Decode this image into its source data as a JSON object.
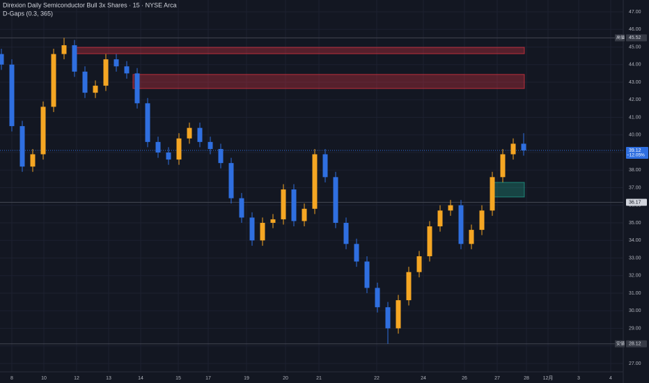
{
  "chart_data": {
    "type": "candlestick",
    "title": "Direxion Daily Semiconductor Bull 3x Shares · 15 · NYSE Arca",
    "subtitle": "D-Gaps (0.3, 365)",
    "up_color": "#f5a623",
    "down_color": "#2f6fe0",
    "x": [
      0.4,
      3.4,
      6.4,
      9.4,
      12.4,
      15.4,
      18.4,
      21.4,
      24.4,
      27.4,
      30.4,
      33.4,
      36.4,
      39.4,
      42.4,
      45.4,
      48.4,
      51.4,
      54.4,
      57.4,
      60.4,
      63.4,
      66.4,
      69.4,
      72.4,
      75.4,
      78.4,
      81.4,
      84.4,
      87.4,
      90.4,
      93.4,
      96.4,
      99.4,
      102.4,
      105.4,
      108.4,
      111.4,
      114.4,
      117.4,
      120.4,
      123.4,
      126.4,
      129.4,
      132.4,
      135.4,
      138.4,
      141.4,
      144.4,
      147.4,
      150.4
    ],
    "open": [
      44.6,
      44.0,
      40.5,
      38.2,
      38.9,
      41.6,
      44.6,
      45.1,
      43.6,
      42.4,
      42.8,
      44.3,
      43.9,
      43.5,
      41.8,
      39.6,
      39.0,
      38.6,
      39.8,
      40.4,
      39.6,
      39.2,
      38.4,
      36.4,
      35.3,
      34.0,
      35.0,
      35.2,
      36.9,
      35.1,
      35.8,
      38.9,
      37.6,
      35.0,
      33.8,
      32.8,
      31.3,
      30.2,
      29.0,
      30.6,
      32.2,
      33.1,
      34.8,
      35.7,
      36.0,
      33.8,
      34.6,
      35.7,
      37.6,
      38.9,
      39.5
    ],
    "high": [
      44.9,
      44.3,
      40.8,
      39.2,
      41.9,
      44.9,
      45.52,
      45.4,
      43.9,
      43.1,
      44.6,
      44.6,
      44.2,
      43.8,
      42.1,
      39.9,
      39.3,
      40.1,
      40.7,
      40.7,
      39.9,
      39.5,
      38.7,
      36.7,
      35.6,
      35.3,
      35.5,
      37.2,
      37.2,
      36.1,
      39.2,
      39.2,
      37.9,
      35.3,
      34.1,
      33.1,
      31.6,
      30.5,
      30.9,
      32.5,
      33.4,
      35.1,
      36.0,
      36.3,
      36.3,
      34.9,
      36.0,
      37.9,
      39.2,
      39.8,
      40.1
    ],
    "low": [
      43.7,
      40.2,
      37.9,
      37.9,
      38.6,
      41.3,
      44.3,
      43.3,
      42.1,
      42.1,
      42.5,
      43.6,
      43.2,
      41.5,
      39.3,
      38.7,
      38.3,
      38.3,
      39.5,
      39.3,
      38.9,
      38.1,
      36.1,
      35.0,
      33.7,
      33.7,
      34.7,
      34.9,
      34.8,
      34.8,
      35.5,
      37.3,
      34.7,
      33.5,
      32.5,
      31.0,
      29.9,
      28.12,
      28.7,
      30.3,
      31.9,
      32.8,
      34.5,
      35.4,
      33.5,
      33.5,
      34.3,
      35.4,
      37.3,
      38.6,
      38.82
    ],
    "close": [
      44.0,
      40.5,
      38.2,
      38.9,
      41.6,
      44.6,
      45.1,
      43.6,
      42.4,
      42.8,
      44.3,
      43.9,
      43.5,
      41.8,
      39.6,
      39.0,
      38.6,
      39.8,
      40.4,
      39.6,
      39.2,
      38.4,
      36.4,
      35.3,
      34.0,
      35.0,
      35.2,
      36.9,
      35.1,
      35.8,
      38.9,
      37.6,
      35.0,
      33.8,
      32.8,
      31.3,
      30.2,
      29.0,
      30.6,
      32.2,
      33.1,
      34.8,
      35.7,
      36.0,
      33.8,
      34.6,
      35.7,
      37.6,
      38.9,
      39.5,
      39.12
    ],
    "xlim": [
      0,
      179
    ],
    "xticks": [
      {
        "value": 3.4,
        "label": "8"
      },
      {
        "value": 12.6,
        "label": "10"
      },
      {
        "value": 22,
        "label": "12"
      },
      {
        "value": 31.2,
        "label": "13"
      },
      {
        "value": 40.4,
        "label": "14"
      },
      {
        "value": 51.2,
        "label": "15"
      },
      {
        "value": 59.8,
        "label": "17"
      },
      {
        "value": 70.8,
        "label": "19"
      },
      {
        "value": 82,
        "label": "20"
      },
      {
        "value": 91.6,
        "label": "21"
      },
      {
        "value": 108.2,
        "label": "22"
      },
      {
        "value": 121.6,
        "label": "24"
      },
      {
        "value": 133.4,
        "label": "26"
      },
      {
        "value": 142.8,
        "label": "27"
      },
      {
        "value": 151.2,
        "label": "28"
      },
      {
        "value": 157.4,
        "label": "12月"
      },
      {
        "value": 166.2,
        "label": "3"
      },
      {
        "value": 175.4,
        "label": "4"
      }
    ],
    "ylim": [
      27,
      47
    ],
    "yticks": [
      {
        "value": 27,
        "label": "27.00"
      },
      {
        "value": 28,
        "label": "28.00"
      },
      {
        "value": 29,
        "label": "29.00"
      },
      {
        "value": 30,
        "label": "30.00"
      },
      {
        "value": 31,
        "label": "31.00"
      },
      {
        "value": 32,
        "label": "32.00"
      },
      {
        "value": 33,
        "label": "33.00"
      },
      {
        "value": 34,
        "label": "34.00"
      },
      {
        "value": 35,
        "label": "35.00"
      },
      {
        "value": 36,
        "label": "36.00"
      },
      {
        "value": 37,
        "label": "37.00"
      },
      {
        "value": 38,
        "label": "38.00"
      },
      {
        "value": 39,
        "label": "39.00"
      },
      {
        "value": 40,
        "label": "40.00"
      },
      {
        "value": 41,
        "label": "41.00"
      },
      {
        "value": 42,
        "label": "42.00"
      },
      {
        "value": 43,
        "label": "43.00"
      },
      {
        "value": 44,
        "label": "44.00"
      },
      {
        "value": 45,
        "label": "45.00"
      },
      {
        "value": 46,
        "label": "46.00"
      },
      {
        "value": 47,
        "label": "47.00"
      }
    ],
    "grid": true,
    "gaps": [
      {
        "x0": 20.8,
        "x1": 150.6,
        "top": 44.98,
        "bottom": 44.62,
        "color": "#f23645"
      },
      {
        "x0": 38.2,
        "x1": 150.6,
        "top": 43.44,
        "bottom": 42.64,
        "color": "#f23645"
      },
      {
        "x0": 141,
        "x1": 150.6,
        "top": 37.3,
        "bottom": 36.47,
        "color": "#22ab94"
      }
    ],
    "high_line": {
      "name": "高値",
      "value": 45.52
    },
    "low_line": {
      "name": "安値",
      "value": 28.12
    },
    "last_price": {
      "value": 39.12,
      "change": {
        "value": -12.05,
        "label": "−12.05%"
      }
    },
    "level_line": {
      "value": 36.17
    }
  }
}
